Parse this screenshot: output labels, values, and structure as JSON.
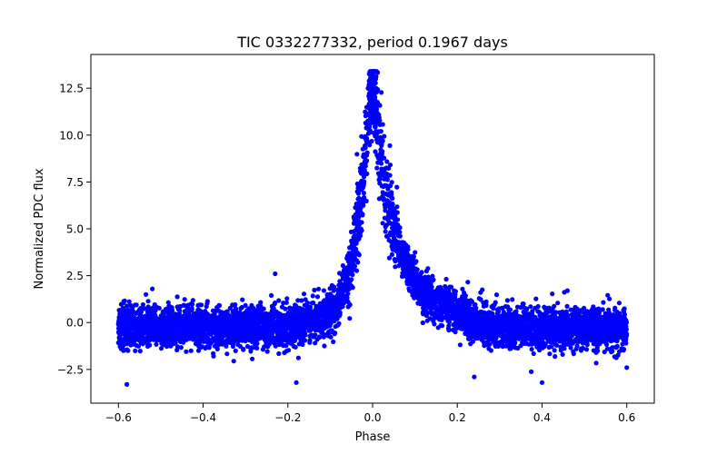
{
  "chart_data": {
    "type": "scatter",
    "title": "TIC 0332277332, period 0.1967 days",
    "xlabel": "Phase",
    "ylabel": "Normalized PDC flux",
    "xlim": [
      -0.665,
      0.665
    ],
    "ylim": [
      -4.3,
      14.3
    ],
    "xticks": [
      -0.6,
      -0.4,
      -0.2,
      0.0,
      0.2,
      0.4,
      0.6
    ],
    "xtick_labels": [
      "−0.6",
      "−0.4",
      "−0.2",
      "0.0",
      "0.2",
      "0.4",
      "0.6"
    ],
    "yticks": [
      -2.5,
      0.0,
      2.5,
      5.0,
      7.5,
      10.0,
      12.5
    ],
    "ytick_labels": [
      "−2.5",
      "0.0",
      "2.5",
      "5.0",
      "7.5",
      "10.0",
      "12.5"
    ],
    "grid": false,
    "marker_color": "#0000ff",
    "series": [
      {
        "name": "",
        "envelope": {
          "phase_range": [
            -0.6,
            0.6
          ],
          "baseline_flux": -0.5,
          "baseline_scatter_range": [
            -2.5,
            1.3
          ],
          "peak_phase": 0.0,
          "peak_flux": 13.4,
          "profile": [
            {
              "x": -0.2,
              "y": -0.2
            },
            {
              "x": -0.12,
              "y": 0.2
            },
            {
              "x": -0.08,
              "y": 1.0
            },
            {
              "x": -0.05,
              "y": 3.0
            },
            {
              "x": -0.03,
              "y": 6.0
            },
            {
              "x": -0.015,
              "y": 9.5
            },
            {
              "x": 0.0,
              "y": 12.5
            },
            {
              "x": 0.015,
              "y": 10.0
            },
            {
              "x": 0.03,
              "y": 7.0
            },
            {
              "x": 0.05,
              "y": 5.0
            },
            {
              "x": 0.08,
              "y": 3.0
            },
            {
              "x": 0.12,
              "y": 1.5
            },
            {
              "x": 0.2,
              "y": 0.5
            },
            {
              "x": 0.3,
              "y": -0.3
            }
          ]
        },
        "outliers": [
          {
            "x": -0.58,
            "y": -3.3
          },
          {
            "x": -0.52,
            "y": 1.8
          },
          {
            "x": -0.23,
            "y": 2.6
          },
          {
            "x": -0.18,
            "y": -3.2
          },
          {
            "x": -0.09,
            "y": -0.6
          },
          {
            "x": 0.24,
            "y": -2.9
          },
          {
            "x": 0.4,
            "y": -3.2
          },
          {
            "x": 0.46,
            "y": 1.7
          },
          {
            "x": 0.6,
            "y": -2.4
          }
        ]
      }
    ]
  }
}
